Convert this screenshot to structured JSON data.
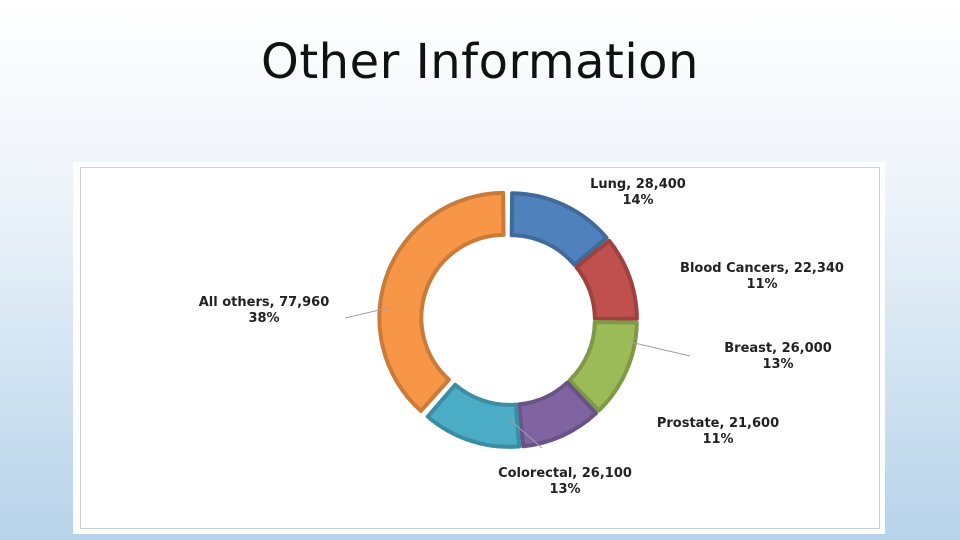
{
  "slide": {
    "title": "Other Information"
  },
  "chart_data": {
    "type": "pie",
    "subtype": "donut",
    "series": [
      {
        "name": "Lung",
        "value": 28400,
        "percent": "14%",
        "label": "Lung, 28,400",
        "color": "#4f81bd"
      },
      {
        "name": "Blood Cancers",
        "value": 22340,
        "percent": "11%",
        "label": "Blood Cancers, 22,340",
        "color": "#c0504d"
      },
      {
        "name": "Breast",
        "value": 26000,
        "percent": "13%",
        "label": "Breast, 26,000",
        "color": "#9bbb59"
      },
      {
        "name": "Prostate",
        "value": 21600,
        "percent": "11%",
        "label": "Prostate, 21,600",
        "color": "#8064a2"
      },
      {
        "name": "Colorectal",
        "value": 26100,
        "percent": "13%",
        "label": "Colorectal, 26,100",
        "color": "#4bacc6"
      },
      {
        "name": "All others",
        "value": 77960,
        "percent": "38%",
        "label": "All others, 77,960",
        "color": "#f79646"
      }
    ]
  }
}
